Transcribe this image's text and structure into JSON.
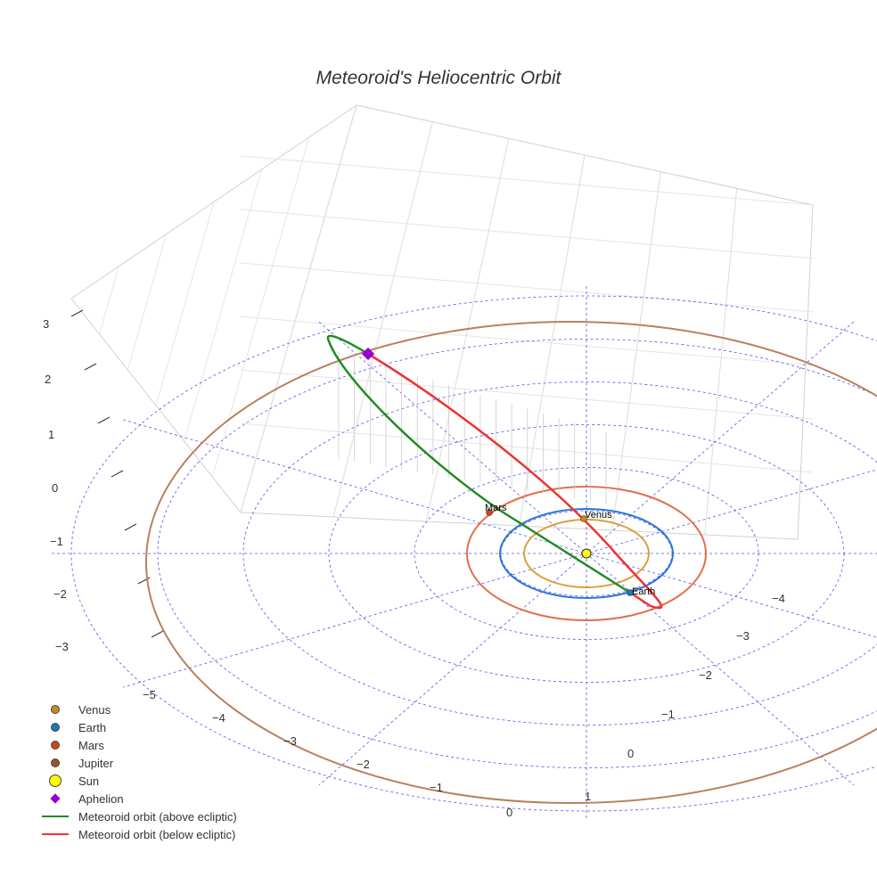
{
  "chart_data": {
    "type": "scatter3d",
    "title": "Meteoroid's Heliocentric Orbit",
    "axes": {
      "x": {
        "ticks": [
          "−5",
          "−4",
          "−3",
          "−2",
          "−1",
          "0",
          "1"
        ]
      },
      "y": {
        "ticks": [
          "−4",
          "−3",
          "−2",
          "−1",
          "0",
          "1"
        ]
      },
      "z": {
        "ticks": [
          "3",
          "2",
          "1",
          "0",
          "−1",
          "−2",
          "−3"
        ]
      }
    },
    "bodies": [
      {
        "name": "Venus",
        "label": "Venus",
        "color": "#c98a1a",
        "orbit_color": "#d9a040"
      },
      {
        "name": "Earth",
        "label": "Earth",
        "color": "#1f77b4",
        "orbit_color": "#2a78d6"
      },
      {
        "name": "Mars",
        "label": "Mars",
        "color": "#d0441a",
        "orbit_color": "#e0704a"
      },
      {
        "name": "Jupiter",
        "label": "",
        "color": "#a0522d",
        "orbit_color": "#b98060"
      },
      {
        "name": "Sun",
        "label": "",
        "color": "#ffff00"
      }
    ],
    "legend": [
      {
        "label": "Venus",
        "kind": "dot",
        "color": "#c98a1a"
      },
      {
        "label": "Earth",
        "kind": "dot",
        "color": "#1f77b4"
      },
      {
        "label": "Mars",
        "kind": "dot",
        "color": "#d0441a"
      },
      {
        "label": "Jupiter",
        "kind": "dot",
        "color": "#a0522d"
      },
      {
        "label": "Sun",
        "kind": "sun",
        "color": "#ffff00"
      },
      {
        "label": "Aphelion",
        "kind": "diamond",
        "color": "#9400d3"
      },
      {
        "label": "Meteoroid orbit (above ecliptic)",
        "kind": "line",
        "color": "#228b22"
      },
      {
        "label": "Meteoroid orbit (below ecliptic)",
        "kind": "line",
        "color": "#ee3333"
      }
    ],
    "legend_position": "bottom-left"
  }
}
